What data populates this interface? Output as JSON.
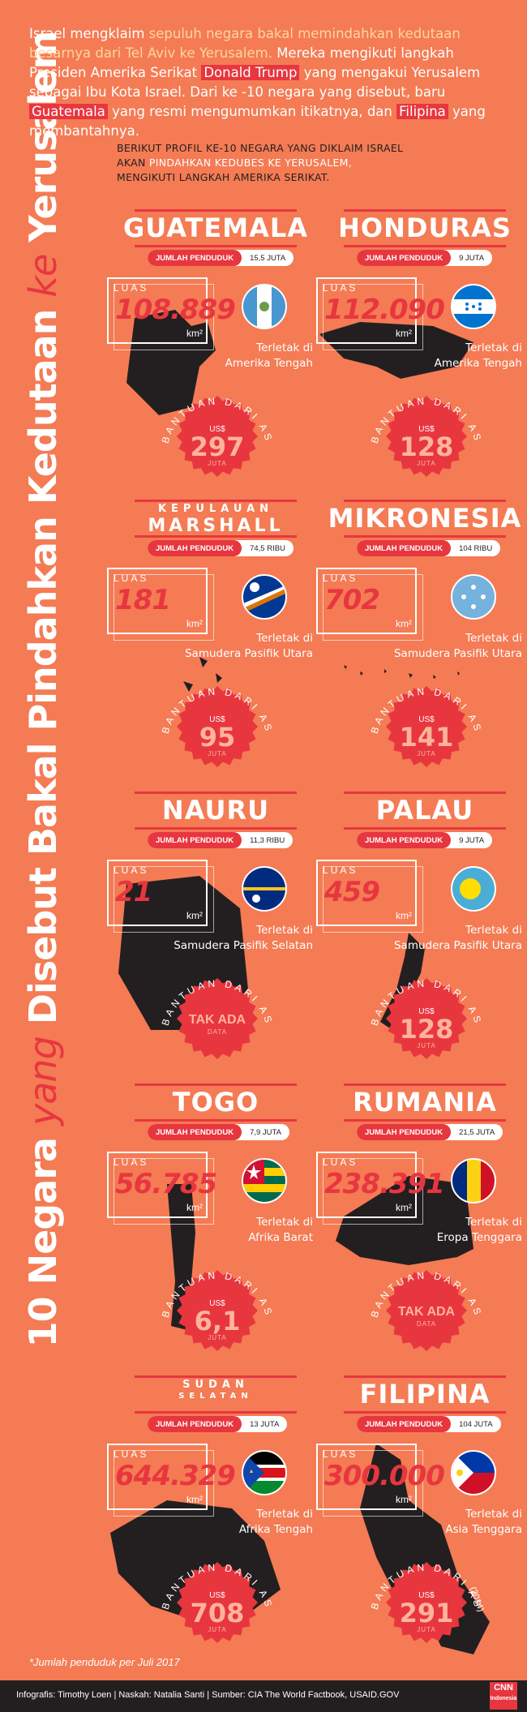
{
  "title": {
    "part1": "10 Negara ",
    "part2": "yang",
    "part3": " Disebut Bakal Pindahkan Kedutaan ",
    "part4": "ke",
    "part5": " Yerusalem"
  },
  "intro": {
    "s1": "Israel mengklaim ",
    "s2": "sepuluh negara bakal memindahkan kedutaan besarnya dari Tel Aviv ke Yerusalem.",
    "s3": " Mereka mengikuti langkah Presiden Amerika Serikat ",
    "s4": "Donald Trump",
    "s5": " yang mengakui Yerusalem sebagai Ibu Kota Israel. Dari ke -10 negara yang disebut, baru ",
    "s6": "Guatemala",
    "s7": " yang resmi mengumumkan itikatnya, dan ",
    "s8": "Filipina",
    "s9": " yang membantahnya."
  },
  "subtitle": {
    "l1": "BERIKUT PROFIL KE-10 NEGARA YANG DIKLAIM ISRAEL",
    "l2a": "AKAN ",
    "l2b": "PINDAHKAN KEDUBES KE YERUSALEM,",
    "l3": "MENGIKUTI LANGKAH AMERIKA SERIKAT."
  },
  "labels": {
    "pop": "JUMLAH PENDUDUK",
    "luas": "LUAS",
    "unit": "km²",
    "aid": "BANTUAN DARI AS",
    "currency": "US$",
    "juta": "JUTA"
  },
  "countries": [
    {
      "name": "GUATEMALA",
      "pop": "15,5 JUTA",
      "area": "108.889",
      "loc1": "Terletak di",
      "loc2": "Amerika Tengah",
      "aid": "297",
      "flag": "guatemala"
    },
    {
      "name": "HONDURAS",
      "pop": "9 JUTA",
      "area": "112.090",
      "loc1": "Terletak di",
      "loc2": "Amerika Tengah",
      "aid": "128",
      "flag": "honduras"
    },
    {
      "name_top": "KEPULAUAN",
      "name": "MARSHALL",
      "pop": "74,5 RIBU",
      "area": "181",
      "loc1": "Terletak di",
      "loc2": "Samudera Pasifik Utara",
      "aid": "95",
      "flag": "marshall"
    },
    {
      "name": "MIKRONESIA",
      "pop": "104 RIBU",
      "area": "702",
      "loc1": "Terletak di",
      "loc2": "Samudera Pasifik Utara",
      "aid": "141",
      "flag": "micronesia"
    },
    {
      "name": "NAURU",
      "pop": "11,3 RIBU",
      "area": "21",
      "loc1": "Terletak di",
      "loc2": "Samudera Pasifik Selatan",
      "aid_text": "TAK ADA",
      "aid_sub": "DATA",
      "flag": "nauru"
    },
    {
      "name": "PALAU",
      "pop": "9 JUTA",
      "area": "459",
      "loc1": "Terletak di",
      "loc2": "Samudera Pasifik Utara",
      "aid": "128",
      "flag": "palau"
    },
    {
      "name": "TOGO",
      "pop": "7,9 JUTA",
      "area": "56.785",
      "loc1": "Terletak di",
      "loc2": "Afrika Barat",
      "aid": "6,1",
      "flag": "togo"
    },
    {
      "name": "RUMANIA",
      "pop": "21,5 JUTA",
      "area": "238.391",
      "loc1": "Terletak di",
      "loc2": "Eropa Tenggara",
      "aid_text": "TAK ADA",
      "aid_sub": "DATA",
      "flag": "romania"
    },
    {
      "name_top": "SUDAN",
      "name_top2": "SELATAN",
      "pop": "13 JUTA",
      "area": "644.329",
      "loc1": "Terletak di",
      "loc2": "Afrika Tengah",
      "aid": "708",
      "flag": "south-sudan"
    },
    {
      "name": "FILIPINA",
      "pop": "104 JUTA",
      "area": "300.000",
      "loc1": "Terletak di",
      "loc2": "Asia Tenggara",
      "aid": "291",
      "aid_note": "(2014)",
      "flag": "philippines"
    }
  ],
  "footnote": "*Jumlah penduduk per Juli 2017",
  "credits": "Infografis: Timothy Loen | Naskah: Natalia Santi | Sumber: CIA The World Factbook, USAID.GOV",
  "logo": {
    "l1": "CNN",
    "l2": "Indonesia"
  }
}
